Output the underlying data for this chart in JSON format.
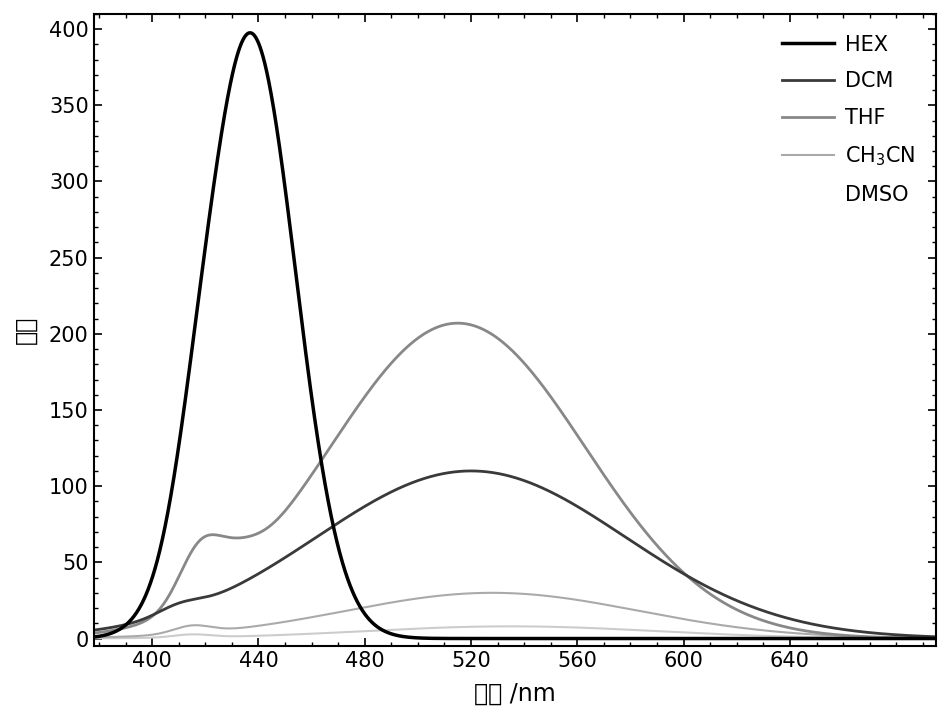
{
  "title": "",
  "xlabel": "波长 /nm",
  "ylabel": "强度",
  "xlim": [
    378,
    695
  ],
  "ylim": [
    -5,
    410
  ],
  "xticks": [
    400,
    440,
    480,
    520,
    560,
    600,
    640
  ],
  "yticks": [
    0,
    50,
    100,
    150,
    200,
    250,
    300,
    350,
    400
  ],
  "background_color": "#ffffff",
  "series": {
    "HEX": {
      "color": "#000000",
      "linewidth": 2.5
    },
    "DCM": {
      "color": "#3a3a3a",
      "linewidth": 2.0
    },
    "THF": {
      "color": "#888888",
      "linewidth": 2.0
    },
    "CH3CN": {
      "color": "#aaaaaa",
      "linewidth": 1.5
    },
    "DMSO": {
      "color": "#cccccc",
      "linewidth": 1.5
    }
  },
  "legend_fontsize": 15,
  "axis_fontsize": 17,
  "tick_fontsize": 15
}
